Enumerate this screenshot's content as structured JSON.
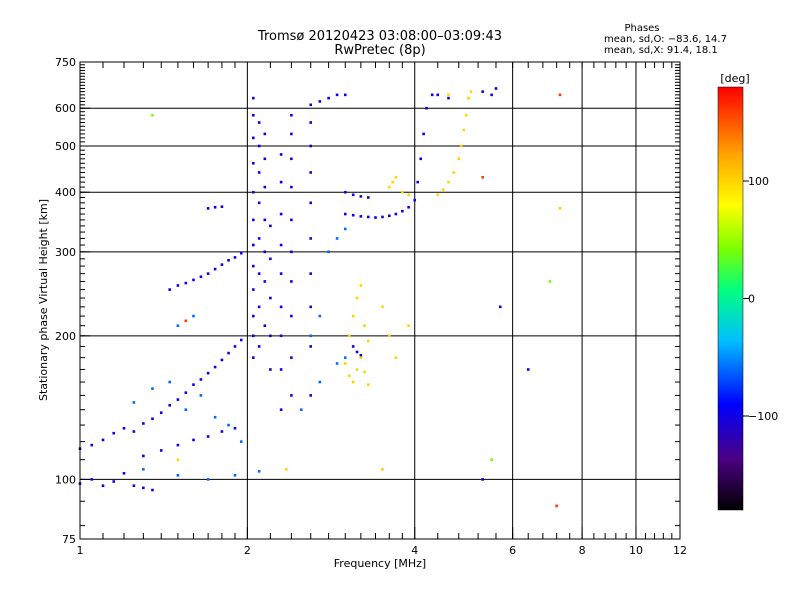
{
  "chart_data": {
    "type": "scatter",
    "title": "Tromsø 20120423 03:08:00–03:09:43",
    "subtitle": "RwPretec (8p)",
    "xlabel": "Frequency [MHz]",
    "ylabel": "Stationary phase Virtual Height [km]",
    "x_scale": "log",
    "y_scale": "log",
    "xlim": [
      1,
      12
    ],
    "ylim": [
      75,
      750
    ],
    "x_ticks": [
      1,
      2,
      4,
      6,
      8,
      10,
      12
    ],
    "x_tick_labels": [
      "1",
      "2",
      "4",
      "6",
      "8",
      "10",
      "12"
    ],
    "y_ticks": [
      75,
      100,
      200,
      300,
      400,
      500,
      600,
      750
    ],
    "y_tick_labels": [
      "75",
      "100",
      "200",
      "300",
      "400",
      "500",
      "600",
      "750"
    ],
    "x_grid": [
      1,
      2,
      4,
      6,
      8,
      10
    ],
    "y_grid": [
      100,
      200,
      300,
      400,
      500,
      600
    ],
    "grid": true,
    "stats_header": "Phases",
    "stats_lines": [
      "mean, sd,O: −83.6, 14.7",
      "mean, sd,X:  91.4, 18.1"
    ],
    "colorbar": {
      "label": "[deg]",
      "range": [
        -180,
        180
      ],
      "ticks": [
        100,
        0,
        -100
      ],
      "tick_labels": [
        "100",
        "0",
        "−100"
      ],
      "colors": [
        "#000000",
        "#4b0082",
        "#0000ff",
        "#00bfff",
        "#00ff7f",
        "#7fff00",
        "#ffff00",
        "#ffa500",
        "#ff0000"
      ]
    },
    "series": [
      {
        "mode": "O",
        "phase_deg": -100,
        "points": [
          [
            1.0,
            98
          ],
          [
            1.05,
            100
          ],
          [
            1.1,
            97
          ],
          [
            1.15,
            99
          ],
          [
            1.2,
            103
          ],
          [
            1.25,
            97
          ],
          [
            1.3,
            96
          ],
          [
            1.35,
            95
          ],
          [
            1.0,
            116
          ],
          [
            1.05,
            118
          ],
          [
            1.1,
            121
          ],
          [
            1.15,
            125
          ],
          [
            1.2,
            128
          ],
          [
            1.25,
            126
          ],
          [
            1.3,
            131
          ],
          [
            1.35,
            134
          ],
          [
            1.4,
            138
          ],
          [
            1.45,
            143
          ],
          [
            1.5,
            147
          ],
          [
            1.55,
            152
          ],
          [
            1.6,
            158
          ],
          [
            1.65,
            162
          ],
          [
            1.7,
            167
          ],
          [
            1.75,
            172
          ],
          [
            1.8,
            178
          ],
          [
            1.85,
            184
          ],
          [
            1.9,
            190
          ],
          [
            1.95,
            196
          ],
          [
            1.3,
            112
          ],
          [
            1.4,
            115
          ],
          [
            1.5,
            118
          ],
          [
            1.6,
            121
          ],
          [
            1.7,
            123
          ],
          [
            1.8,
            126
          ],
          [
            1.9,
            128
          ],
          [
            1.45,
            250
          ],
          [
            1.5,
            255
          ],
          [
            1.55,
            258
          ],
          [
            1.6,
            262
          ],
          [
            1.65,
            266
          ],
          [
            1.7,
            270
          ],
          [
            1.75,
            276
          ],
          [
            1.8,
            282
          ],
          [
            1.85,
            288
          ],
          [
            1.9,
            292
          ],
          [
            1.95,
            298
          ],
          [
            1.7,
            370
          ],
          [
            1.75,
            372
          ],
          [
            1.8,
            373
          ],
          [
            2.05,
            180
          ],
          [
            2.05,
            200
          ],
          [
            2.05,
            220
          ],
          [
            2.05,
            250
          ],
          [
            2.05,
            280
          ],
          [
            2.05,
            310
          ],
          [
            2.05,
            350
          ],
          [
            2.05,
            400
          ],
          [
            2.05,
            460
          ],
          [
            2.05,
            520
          ],
          [
            2.05,
            580
          ],
          [
            2.05,
            630
          ],
          [
            2.1,
            190
          ],
          [
            2.1,
            230
          ],
          [
            2.1,
            270
          ],
          [
            2.1,
            320
          ],
          [
            2.1,
            380
          ],
          [
            2.1,
            440
          ],
          [
            2.1,
            500
          ],
          [
            2.1,
            560
          ],
          [
            2.15,
            210
          ],
          [
            2.15,
            260
          ],
          [
            2.15,
            300
          ],
          [
            2.15,
            350
          ],
          [
            2.15,
            410
          ],
          [
            2.15,
            470
          ],
          [
            2.15,
            530
          ],
          [
            2.2,
            170
          ],
          [
            2.2,
            200
          ],
          [
            2.2,
            240
          ],
          [
            2.2,
            290
          ],
          [
            2.2,
            340
          ],
          [
            2.3,
            140
          ],
          [
            2.3,
            170
          ],
          [
            2.3,
            200
          ],
          [
            2.3,
            230
          ],
          [
            2.3,
            270
          ],
          [
            2.3,
            310
          ],
          [
            2.3,
            360
          ],
          [
            2.3,
            420
          ],
          [
            2.3,
            480
          ],
          [
            2.4,
            150
          ],
          [
            2.4,
            180
          ],
          [
            2.4,
            220
          ],
          [
            2.4,
            260
          ],
          [
            2.4,
            300
          ],
          [
            2.4,
            350
          ],
          [
            2.4,
            410
          ],
          [
            2.4,
            470
          ],
          [
            2.4,
            530
          ],
          [
            2.4,
            580
          ],
          [
            2.6,
            150
          ],
          [
            2.6,
            190
          ],
          [
            2.6,
            230
          ],
          [
            2.6,
            270
          ],
          [
            2.6,
            320
          ],
          [
            2.6,
            380
          ],
          [
            2.6,
            440
          ],
          [
            2.6,
            500
          ],
          [
            2.6,
            560
          ],
          [
            2.6,
            610
          ],
          [
            2.7,
            620
          ],
          [
            2.8,
            630
          ],
          [
            2.9,
            640
          ],
          [
            3.0,
            640
          ],
          [
            3.0,
            400
          ],
          [
            3.1,
            395
          ],
          [
            3.2,
            392
          ],
          [
            3.3,
            390
          ],
          [
            3.0,
            360
          ],
          [
            3.1,
            358
          ],
          [
            3.2,
            356
          ],
          [
            3.3,
            355
          ],
          [
            3.4,
            354
          ],
          [
            3.5,
            355
          ],
          [
            3.6,
            357
          ],
          [
            3.7,
            360
          ],
          [
            3.8,
            365
          ],
          [
            3.9,
            372
          ],
          [
            4.0,
            385
          ],
          [
            4.05,
            420
          ],
          [
            4.1,
            470
          ],
          [
            4.15,
            530
          ],
          [
            4.2,
            600
          ],
          [
            4.3,
            640
          ],
          [
            3.1,
            190
          ],
          [
            3.15,
            185
          ],
          [
            3.2,
            182
          ],
          [
            4.4,
            640
          ],
          [
            4.6,
            630
          ],
          [
            5.3,
            650
          ],
          [
            5.5,
            640
          ],
          [
            5.6,
            660
          ],
          [
            5.7,
            230
          ],
          [
            6.4,
            170
          ],
          [
            5.3,
            100
          ]
        ]
      },
      {
        "mode": "mixed",
        "phase_deg": -60,
        "points": [
          [
            1.25,
            145
          ],
          [
            1.35,
            155
          ],
          [
            1.45,
            160
          ],
          [
            1.55,
            140
          ],
          [
            1.65,
            150
          ],
          [
            1.75,
            135
          ],
          [
            1.85,
            130
          ],
          [
            1.95,
            120
          ],
          [
            2.5,
            140
          ],
          [
            2.7,
            160
          ],
          [
            2.9,
            175
          ],
          [
            3.0,
            180
          ],
          [
            2.8,
            300
          ],
          [
            2.9,
            320
          ],
          [
            3.0,
            335
          ],
          [
            2.7,
            220
          ],
          [
            2.6,
            200
          ],
          [
            1.5,
            210
          ],
          [
            1.6,
            220
          ],
          [
            1.3,
            105
          ],
          [
            1.5,
            102
          ],
          [
            1.7,
            100
          ],
          [
            1.9,
            102
          ],
          [
            2.1,
            104
          ]
        ]
      },
      {
        "mode": "X",
        "phase_deg": 100,
        "points": [
          [
            3.0,
            175
          ],
          [
            3.05,
            165
          ],
          [
            3.1,
            160
          ],
          [
            3.15,
            170
          ],
          [
            3.2,
            180
          ],
          [
            3.25,
            168
          ],
          [
            3.3,
            158
          ],
          [
            3.05,
            200
          ],
          [
            3.1,
            220
          ],
          [
            3.15,
            240
          ],
          [
            3.2,
            255
          ],
          [
            3.25,
            210
          ],
          [
            3.3,
            195
          ],
          [
            3.6,
            200
          ],
          [
            3.9,
            210
          ],
          [
            3.7,
            180
          ],
          [
            3.5,
            230
          ],
          [
            3.6,
            410
          ],
          [
            3.65,
            420
          ],
          [
            3.7,
            430
          ],
          [
            3.8,
            400
          ],
          [
            3.9,
            395
          ],
          [
            4.4,
            395
          ],
          [
            4.5,
            405
          ],
          [
            4.6,
            420
          ],
          [
            4.7,
            440
          ],
          [
            4.8,
            470
          ],
          [
            4.85,
            500
          ],
          [
            4.9,
            540
          ],
          [
            4.95,
            580
          ],
          [
            5.0,
            630
          ],
          [
            5.05,
            650
          ],
          [
            4.6,
            640
          ],
          [
            2.35,
            105
          ],
          [
            3.5,
            105
          ],
          [
            1.5,
            110
          ],
          [
            7.3,
            370
          ]
        ]
      },
      {
        "mode": "outlier",
        "phase_deg": 160,
        "points": [
          [
            7.3,
            640
          ],
          [
            7.2,
            88
          ],
          [
            5.3,
            430
          ],
          [
            1.55,
            215
          ]
        ]
      },
      {
        "mode": "outlier",
        "phase_deg": 40,
        "points": [
          [
            1.35,
            580
          ],
          [
            7.0,
            260
          ],
          [
            5.5,
            110
          ]
        ]
      }
    ]
  }
}
